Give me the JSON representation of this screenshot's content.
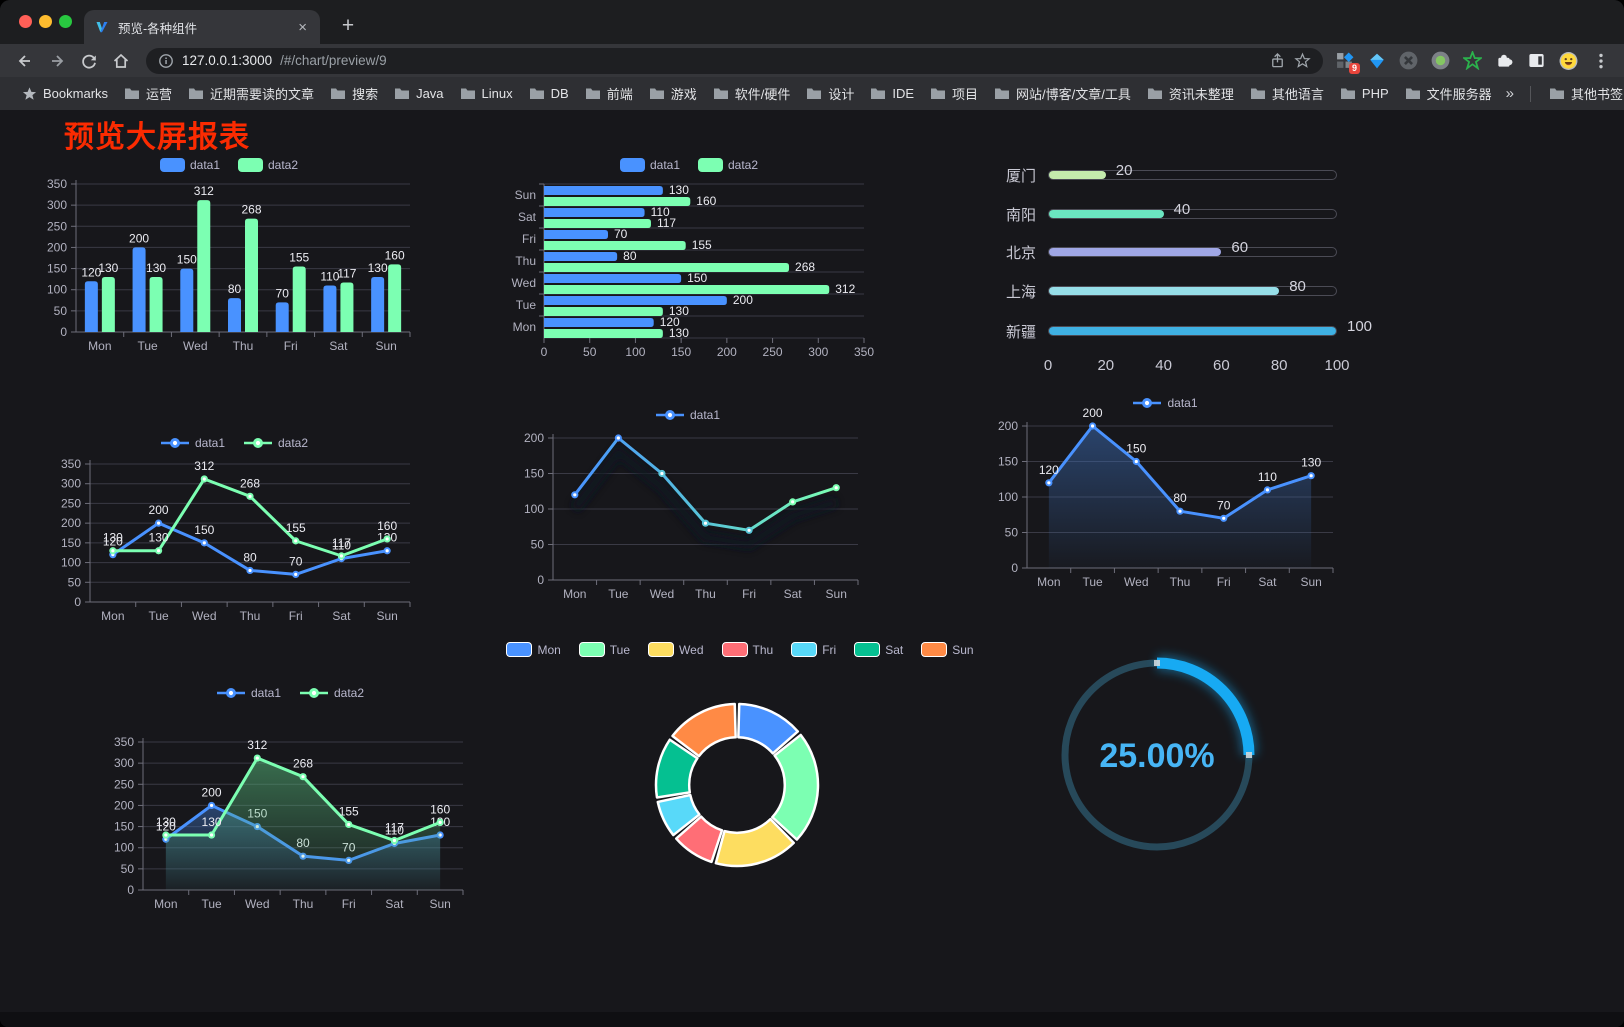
{
  "browser": {
    "tab": {
      "title": "预览-各种组件",
      "close_glyph": "×",
      "new_tab_glyph": "+"
    },
    "url": {
      "host": "127.0.0.1:3000",
      "path": "/#/chart/preview/9"
    },
    "bookmarks_label": "Bookmarks",
    "bookmarks": [
      "运营",
      "近期需要读的文章",
      "搜索",
      "Java",
      "Linux",
      "DB",
      "前端",
      "游戏",
      "软件/硬件",
      "设计",
      "IDE",
      "项目",
      "网站/博客/文章/工具",
      "资讯未整理",
      "其他语言",
      "PHP",
      "文件服务器"
    ],
    "bookmarks_overflow": "»",
    "other_bookmarks": "其他书签",
    "extension_badge": "9"
  },
  "page": {
    "title": "预览大屏报表",
    "title_color": "#fb2b01",
    "background": "#17171b"
  },
  "chart_data": [
    {
      "id": "bar-vertical",
      "type": "bar",
      "legend_position": "top",
      "categories": [
        "Mon",
        "Tue",
        "Wed",
        "Thu",
        "Fri",
        "Sat",
        "Sun"
      ],
      "series": [
        {
          "name": "data1",
          "color": "#4992ff",
          "values": [
            120,
            200,
            150,
            80,
            70,
            110,
            130
          ]
        },
        {
          "name": "data2",
          "color": "#7cffb2",
          "values": [
            130,
            130,
            312,
            268,
            155,
            117,
            160
          ]
        }
      ],
      "ylim": [
        0,
        350
      ],
      "ystep": 50,
      "grid": true,
      "value_labels": true
    },
    {
      "id": "bar-horizontal",
      "type": "bar",
      "orientation": "horizontal",
      "legend_position": "top",
      "categories": [
        "Mon",
        "Tue",
        "Wed",
        "Thu",
        "Fri",
        "Sat",
        "Sun"
      ],
      "display_order_top_to_bottom": [
        "Sun",
        "Sat",
        "Fri",
        "Thu",
        "Wed",
        "Tue",
        "Mon"
      ],
      "series": [
        {
          "name": "data1",
          "color": "#4992ff",
          "values": [
            120,
            200,
            150,
            80,
            70,
            110,
            130
          ]
        },
        {
          "name": "data2",
          "color": "#7cffb2",
          "values": [
            130,
            130,
            312,
            268,
            155,
            117,
            160
          ]
        }
      ],
      "xlim": [
        0,
        350
      ],
      "xstep": 50,
      "value_labels": true
    },
    {
      "id": "city-progress",
      "type": "bar",
      "orientation": "progress",
      "categories": [
        "厦门",
        "南阳",
        "北京",
        "上海",
        "新疆"
      ],
      "values": [
        20,
        40,
        60,
        80,
        100
      ],
      "colors": [
        "#c4ebad",
        "#6be6c1",
        "#a0a7e6",
        "#96dee8",
        "#3fb1e3"
      ],
      "xlim": [
        0,
        100
      ],
      "xticks": [
        0,
        20,
        40,
        60,
        80,
        100
      ]
    },
    {
      "id": "line-double",
      "type": "line",
      "legend_position": "top",
      "categories": [
        "Mon",
        "Tue",
        "Wed",
        "Thu",
        "Fri",
        "Sat",
        "Sun"
      ],
      "series": [
        {
          "name": "data1",
          "color": "#4992ff",
          "values": [
            120,
            200,
            150,
            80,
            70,
            110,
            130
          ]
        },
        {
          "name": "data2",
          "color": "#7cffb2",
          "values": [
            130,
            130,
            312,
            268,
            155,
            117,
            160
          ]
        }
      ],
      "ylim": [
        0,
        350
      ],
      "ystep": 50,
      "value_labels": true
    },
    {
      "id": "line-gradient",
      "type": "line",
      "legend_position": "top",
      "categories": [
        "Mon",
        "Tue",
        "Wed",
        "Thu",
        "Fri",
        "Sat",
        "Sun"
      ],
      "series": [
        {
          "name": "data1",
          "color": "#4992ff",
          "gradient": [
            "#4992ff",
            "#58c5d8",
            "#7cffb2"
          ],
          "values": [
            120,
            200,
            150,
            80,
            70,
            110,
            130
          ]
        }
      ],
      "ylim": [
        0,
        200
      ],
      "ystep": 50,
      "value_labels": false,
      "shadow": true
    },
    {
      "id": "area-single",
      "type": "area",
      "legend_position": "top",
      "categories": [
        "Mon",
        "Tue",
        "Wed",
        "Thu",
        "Fri",
        "Sat",
        "Sun"
      ],
      "series": [
        {
          "name": "data1",
          "color": "#4992ff",
          "values": [
            120,
            200,
            150,
            80,
            70,
            110,
            130
          ]
        }
      ],
      "ylim": [
        0,
        200
      ],
      "ystep": 50,
      "value_labels": true
    },
    {
      "id": "area-double",
      "type": "area",
      "legend_position": "top",
      "categories": [
        "Mon",
        "Tue",
        "Wed",
        "Thu",
        "Fri",
        "Sat",
        "Sun"
      ],
      "series": [
        {
          "name": "data1",
          "color": "#4992ff",
          "values": [
            120,
            200,
            150,
            80,
            70,
            110,
            130
          ]
        },
        {
          "name": "data2",
          "color": "#7cffb2",
          "values": [
            130,
            130,
            312,
            268,
            155,
            117,
            160
          ]
        }
      ],
      "ylim": [
        0,
        350
      ],
      "ystep": 50,
      "value_labels": true
    },
    {
      "id": "donut",
      "type": "pie",
      "legend_position": "top",
      "inner_radius_ratio": 0.59,
      "categories": [
        "Mon",
        "Tue",
        "Wed",
        "Thu",
        "Fri",
        "Sat",
        "Sun"
      ],
      "values": [
        120,
        200,
        150,
        80,
        70,
        110,
        130
      ],
      "colors": [
        "#4992ff",
        "#7cffb2",
        "#fddd60",
        "#ff6e76",
        "#58d9f9",
        "#05c091",
        "#ff8a45"
      ],
      "border_color": "#ffffff"
    },
    {
      "id": "gauge",
      "type": "gauge",
      "value": 25,
      "max": 100,
      "label": "25.00%",
      "color": "#17aaf3",
      "track_color": "#27495a",
      "text_color": "#47b5f5"
    }
  ]
}
